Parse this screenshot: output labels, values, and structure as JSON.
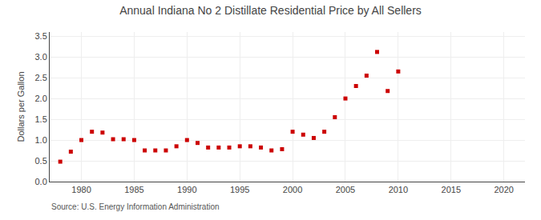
{
  "chart_data": {
    "type": "scatter",
    "title": "Annual Indiana No 2 Distillate Residential Price by All Sellers",
    "ylabel": "Dollars per Gallon",
    "annotations": [
      "Source: U.S. Energy Information Administration"
    ],
    "x": [
      1978,
      1979,
      1980,
      1981,
      1982,
      1983,
      1984,
      1985,
      1986,
      1987,
      1988,
      1989,
      1990,
      1991,
      1992,
      1993,
      1994,
      1995,
      1996,
      1997,
      1998,
      1999,
      2000,
      2001,
      2002,
      2003,
      2004,
      2005,
      2006,
      2007,
      2008,
      2009,
      2010
    ],
    "values": [
      0.48,
      0.72,
      1.0,
      1.2,
      1.18,
      1.02,
      1.02,
      1.0,
      0.75,
      0.75,
      0.75,
      0.85,
      1.0,
      0.93,
      0.82,
      0.82,
      0.82,
      0.85,
      0.85,
      0.82,
      0.75,
      0.78,
      1.2,
      1.13,
      1.05,
      1.2,
      1.55,
      2.0,
      2.3,
      2.55,
      3.12,
      2.18,
      2.65
    ],
    "color": "#cc0000",
    "marker": "square",
    "xlim": [
      1977,
      2022
    ],
    "ylim": [
      0.0,
      3.6
    ],
    "xticks": [
      1980,
      1985,
      1990,
      1995,
      2000,
      2005,
      2010,
      2015,
      2020
    ],
    "yticks": [
      {
        "value": 0.0,
        "label": "0.0"
      },
      0.5,
      {
        "value": 1.0,
        "label": "1.0"
      },
      1.5,
      {
        "value": 2.0,
        "label": "2.0"
      },
      2.5,
      {
        "value": 3.0,
        "label": "3.0"
      },
      3.5
    ],
    "grid": true
  }
}
